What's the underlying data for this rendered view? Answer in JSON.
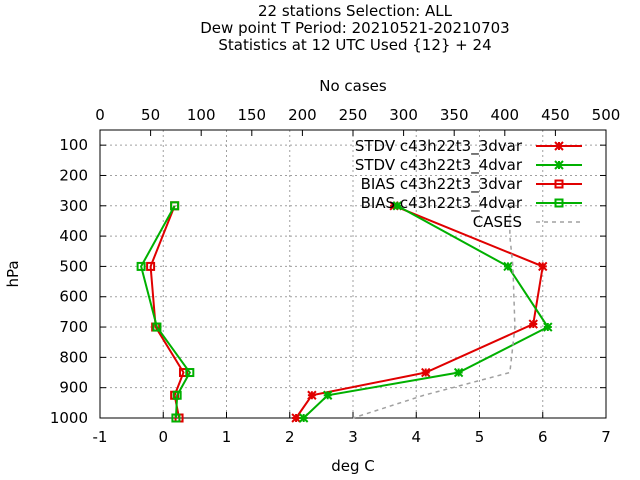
{
  "chart_data": {
    "type": "line",
    "title_lines": [
      "22 stations Selection: ALL",
      "Dew point T  Period: 20210521-20210703",
      "Statistics at 12 UTC  Used {12} + 24"
    ],
    "xlabel": "deg C",
    "ylabel": "hPa",
    "x2label": "No cases",
    "xlim": [
      -1,
      7
    ],
    "x2lim": [
      0,
      500
    ],
    "ylim": [
      1000,
      50
    ],
    "xticks": [
      -1,
      0,
      1,
      2,
      3,
      4,
      5,
      6,
      7
    ],
    "x2ticks": [
      0,
      50,
      100,
      150,
      200,
      250,
      300,
      350,
      400,
      450,
      500
    ],
    "yticks": [
      100,
      200,
      300,
      400,
      500,
      600,
      700,
      800,
      900,
      1000
    ],
    "grid": true,
    "legend_position": "top-right",
    "series": [
      {
        "name": "STDV c43h22t3_3dvar",
        "axis": "x",
        "color": "#e00000",
        "marker": "x",
        "points": [
          [
            3.65,
            300
          ],
          [
            6.0,
            500
          ],
          [
            5.85,
            690
          ],
          [
            4.15,
            850
          ],
          [
            2.35,
            925
          ],
          [
            2.1,
            1000
          ]
        ]
      },
      {
        "name": "STDV c43h22t3_4dvar",
        "axis": "x",
        "color": "#00b000",
        "marker": "x",
        "points": [
          [
            3.7,
            300
          ],
          [
            5.45,
            500
          ],
          [
            6.08,
            700
          ],
          [
            4.67,
            850
          ],
          [
            2.6,
            925
          ],
          [
            2.22,
            1000
          ]
        ]
      },
      {
        "name": "BIAS c43h22t3_3dvar",
        "axis": "x",
        "color": "#e00000",
        "marker": "square",
        "points": [
          [
            0.18,
            300
          ],
          [
            -0.2,
            500
          ],
          [
            -0.12,
            700
          ],
          [
            0.32,
            850
          ],
          [
            0.18,
            925
          ],
          [
            0.25,
            1000
          ]
        ]
      },
      {
        "name": "BIAS c43h22t3_4dvar",
        "axis": "x",
        "color": "#00b000",
        "marker": "square",
        "points": [
          [
            0.18,
            300
          ],
          [
            -0.35,
            500
          ],
          [
            -0.1,
            700
          ],
          [
            0.42,
            850
          ],
          [
            0.22,
            925
          ],
          [
            0.2,
            1000
          ]
        ]
      },
      {
        "name": "CASES",
        "axis": "x2",
        "color": "#a0a0a0",
        "marker": "none",
        "dash": true,
        "points": [
          [
            405,
            300
          ],
          [
            405,
            400
          ],
          [
            408,
            500
          ],
          [
            410,
            700
          ],
          [
            405,
            850
          ],
          [
            320,
            925
          ],
          [
            250,
            1000
          ]
        ]
      }
    ]
  }
}
